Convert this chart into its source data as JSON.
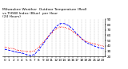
{
  "title": "Milwaukee Weather  Outdoor Temperature (Red)\nvs THSW Index (Blue)  per Hour\n(24 Hours)",
  "hours": [
    0,
    1,
    2,
    3,
    4,
    5,
    6,
    7,
    8,
    9,
    10,
    11,
    12,
    13,
    14,
    15,
    16,
    17,
    18,
    19,
    20,
    21,
    22,
    23
  ],
  "temp_red": [
    38,
    36,
    35,
    32,
    31,
    30,
    29,
    31,
    38,
    47,
    56,
    65,
    72,
    76,
    75,
    72,
    67,
    60,
    54,
    49,
    46,
    44,
    42,
    40
  ],
  "thsw_blue": [
    34,
    32,
    30,
    28,
    27,
    24,
    22,
    24,
    33,
    44,
    55,
    66,
    76,
    82,
    82,
    78,
    71,
    62,
    54,
    47,
    43,
    40,
    37,
    35
  ],
  "ylim": [
    20,
    90
  ],
  "xlim": [
    -0.5,
    23.5
  ],
  "y_ticks": [
    20,
    30,
    40,
    50,
    60,
    70,
    80,
    90
  ],
  "background_color": "#ffffff",
  "red_color": "#ff0000",
  "blue_color": "#0000ff",
  "black_color": "#000000",
  "grid_color": "#999999",
  "title_fontsize": 3.2,
  "tick_fontsize": 3.0,
  "line_width": 0.6,
  "marker_size": 1.0
}
